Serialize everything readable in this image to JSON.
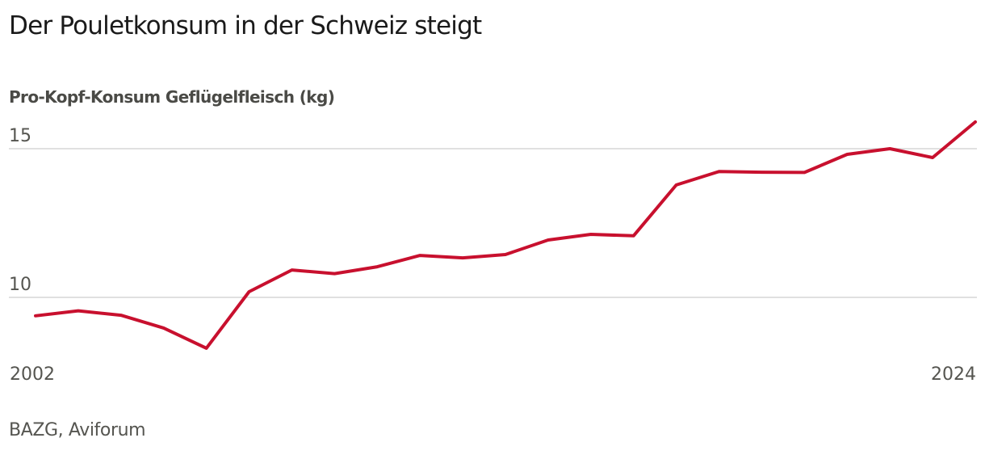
{
  "header": {
    "title": "Der Pouletkonsum in der Schweiz steigt",
    "subtitle": "Pro-Kopf-Konsum Geflügelfleisch (kg)"
  },
  "footer": {
    "source": "BAZG, Aviforum"
  },
  "colors": {
    "line": "#c8102e",
    "grid": "#e0e0e0",
    "text": "#1a1a1a",
    "muted": "#555550"
  },
  "chart_data": {
    "type": "line",
    "title": "Der Pouletkonsum in der Schweiz steigt",
    "subtitle": "Pro-Kopf-Konsum Geflügelfleisch (kg)",
    "xlabel": "",
    "ylabel": "Pro-Kopf-Konsum Geflügelfleisch (kg)",
    "x": [
      2002,
      2003,
      2004,
      2005,
      2006,
      2007,
      2008,
      2009,
      2010,
      2011,
      2012,
      2013,
      2014,
      2015,
      2016,
      2017,
      2018,
      2019,
      2020,
      2021,
      2022,
      2023,
      2024
    ],
    "series": [
      {
        "name": "Pro-Kopf-Konsum Geflügelfleisch",
        "values": [
          9.38,
          9.55,
          9.4,
          8.97,
          8.29,
          10.19,
          10.92,
          10.8,
          11.03,
          11.41,
          11.33,
          11.44,
          11.93,
          12.12,
          12.07,
          13.78,
          14.23,
          14.21,
          14.2,
          14.81,
          15.0,
          14.7,
          15.9
        ]
      }
    ],
    "x_tick_labels": [
      "2002",
      "2024"
    ],
    "y_tick_labels": [
      "10",
      "15"
    ],
    "y_ticks": [
      10,
      15
    ],
    "xlim": [
      2002,
      2024
    ],
    "ylim": [
      8,
      16
    ],
    "grid": "horizontal",
    "legend": "none",
    "source": "BAZG, Aviforum"
  }
}
